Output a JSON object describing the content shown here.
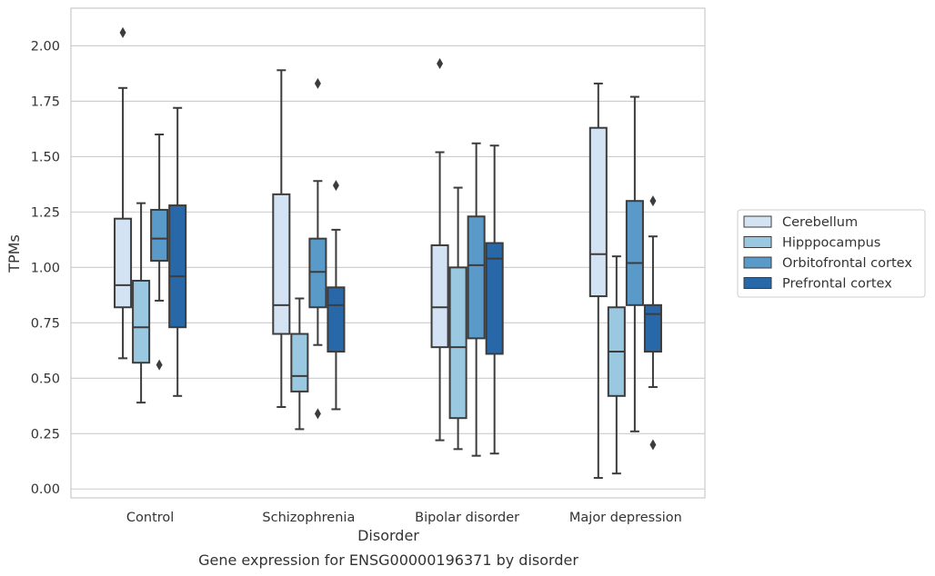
{
  "chart_data": {
    "type": "box",
    "title": "",
    "caption": "Gene expression for ENSG00000196371 by disorder",
    "xlabel": "Disorder",
    "ylabel": "TPMs",
    "ylim": [
      -0.04,
      2.17
    ],
    "yticks": [
      "0.00",
      "0.25",
      "0.50",
      "0.75",
      "1.00",
      "1.25",
      "1.50",
      "1.75",
      "2.00"
    ],
    "grid": "horizontal",
    "legend_position": "right",
    "categories": [
      "Control",
      "Schizophrenia",
      "Bipolar disorder",
      "Major depression"
    ],
    "series": [
      {
        "name": "Cerebellum",
        "color": "#d4e3f3",
        "boxes": [
          {
            "whisker_low": 0.59,
            "q1": 0.82,
            "median": 0.92,
            "q3": 1.22,
            "whisker_high": 1.81,
            "outliers": [
              2.06
            ]
          },
          {
            "whisker_low": 0.37,
            "q1": 0.7,
            "median": 0.83,
            "q3": 1.33,
            "whisker_high": 1.89,
            "outliers": []
          },
          {
            "whisker_low": 0.22,
            "q1": 0.64,
            "median": 0.82,
            "q3": 1.1,
            "whisker_high": 1.52,
            "outliers": [
              1.92
            ]
          },
          {
            "whisker_low": 0.05,
            "q1": 0.87,
            "median": 1.06,
            "q3": 1.63,
            "whisker_high": 1.83,
            "outliers": []
          }
        ]
      },
      {
        "name": "Hipppocampus",
        "color": "#9ac8e0",
        "boxes": [
          {
            "whisker_low": 0.39,
            "q1": 0.57,
            "median": 0.73,
            "q3": 0.94,
            "whisker_high": 1.29,
            "outliers": []
          },
          {
            "whisker_low": 0.27,
            "q1": 0.44,
            "median": 0.51,
            "q3": 0.7,
            "whisker_high": 0.86,
            "outliers": []
          },
          {
            "whisker_low": 0.18,
            "q1": 0.32,
            "median": 0.64,
            "q3": 1.0,
            "whisker_high": 1.36,
            "outliers": []
          },
          {
            "whisker_low": 0.07,
            "q1": 0.42,
            "median": 0.62,
            "q3": 0.82,
            "whisker_high": 1.05,
            "outliers": []
          }
        ]
      },
      {
        "name": "Orbitofrontal cortex",
        "color": "#5a9ac8",
        "boxes": [
          {
            "whisker_low": 0.85,
            "q1": 1.03,
            "median": 1.13,
            "q3": 1.26,
            "whisker_high": 1.6,
            "outliers": [
              0.56
            ]
          },
          {
            "whisker_low": 0.65,
            "q1": 0.82,
            "median": 0.98,
            "q3": 1.13,
            "whisker_high": 1.39,
            "outliers": [
              1.83,
              0.34
            ]
          },
          {
            "whisker_low": 0.15,
            "q1": 0.68,
            "median": 1.01,
            "q3": 1.23,
            "whisker_high": 1.56,
            "outliers": []
          },
          {
            "whisker_low": 0.26,
            "q1": 0.83,
            "median": 1.02,
            "q3": 1.3,
            "whisker_high": 1.77,
            "outliers": []
          }
        ]
      },
      {
        "name": "Prefrontal cortex",
        "color": "#2868a8",
        "boxes": [
          {
            "whisker_low": 0.42,
            "q1": 0.73,
            "median": 0.96,
            "q3": 1.28,
            "whisker_high": 1.72,
            "outliers": []
          },
          {
            "whisker_low": 0.36,
            "q1": 0.62,
            "median": 0.83,
            "q3": 0.91,
            "whisker_high": 1.17,
            "outliers": [
              1.37
            ]
          },
          {
            "whisker_low": 0.16,
            "q1": 0.61,
            "median": 1.04,
            "q3": 1.11,
            "whisker_high": 1.55,
            "outliers": []
          },
          {
            "whisker_low": 0.46,
            "q1": 0.62,
            "median": 0.79,
            "q3": 0.83,
            "whisker_high": 1.14,
            "outliers": [
              1.3,
              0.2
            ]
          }
        ]
      }
    ]
  }
}
